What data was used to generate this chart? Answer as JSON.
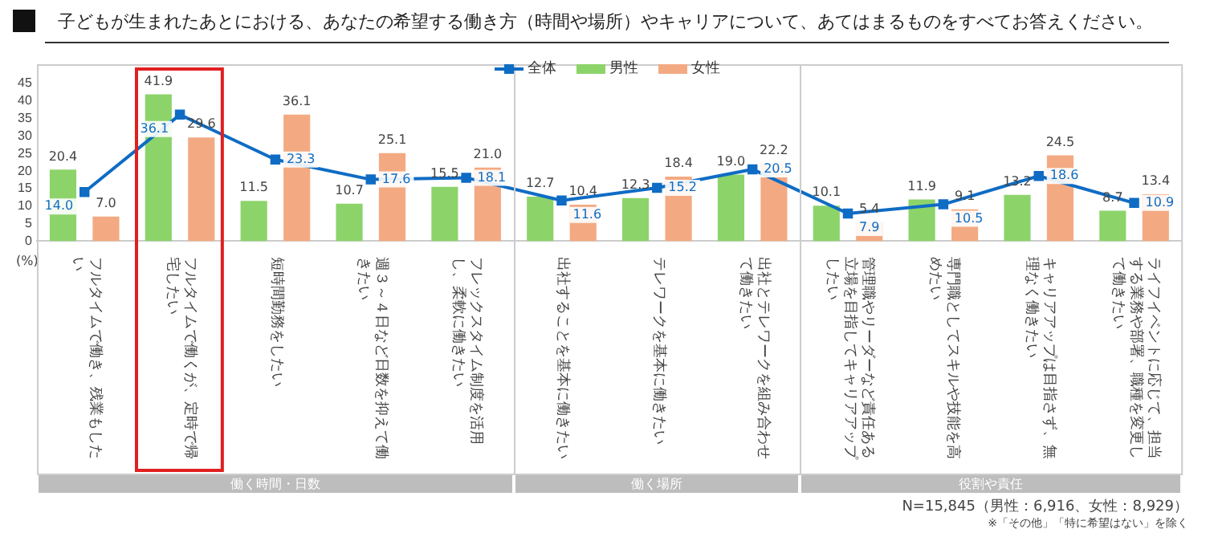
{
  "chart_data": {
    "type": "bar",
    "title": "子どもが生まれたあとにおける、あなたの希望する働き方（時間や場所）やキャリアについて、あてはまるものをすべてお答えください。",
    "ylabel": "(%)",
    "categories": [
      "フルタイムで働き、残業もしたい",
      "フルタイムで働くが、定時で帰宅したい",
      "短時間勤務をしたい",
      "週３～４日など日数を抑えて働きたい",
      "フレックスタイム制度を活用し、柔軟に働きたい",
      "出社することを基本に働きたい",
      "テレワークを基本に働きたい",
      "出社とテレワークを組み合わせて働きたい",
      "管理職やリーダーなど責任ある立場を目指してキャリアアップしたい",
      "専門職としてスキルや技能を高めたい",
      "キャリアアップは目指さず、無理なく働きたい",
      "ライフイベントに応じて、担当する業務や部署、職種を変更して働きたい"
    ],
    "series": [
      {
        "name": "全体",
        "type": "line",
        "color": "#0f6cc4",
        "values": [
          14.0,
          36.1,
          23.3,
          17.6,
          18.1,
          11.6,
          15.2,
          20.5,
          7.9,
          10.5,
          18.6,
          10.9
        ],
        "value_labels": [
          "14.0",
          "36.1",
          "23.3",
          "17.6",
          "18.1",
          "11.6",
          "15.2",
          "20.5",
          "7.9",
          "10.5",
          "18.6",
          "10.9"
        ]
      },
      {
        "name": "男性",
        "color": "#8cd46a",
        "values": [
          20.4,
          41.9,
          11.5,
          10.7,
          15.5,
          12.7,
          12.3,
          19.0,
          10.1,
          11.9,
          13.2,
          8.7
        ],
        "value_labels": [
          "20.4",
          "41.9",
          "11.5",
          "10.7",
          "15.5",
          "12.7",
          "12.3",
          "19.0",
          "10.1",
          "11.9",
          "13.2",
          "8.7"
        ]
      },
      {
        "name": "女性",
        "color": "#f3aa82",
        "values": [
          7.0,
          29.6,
          36.1,
          25.1,
          21.0,
          10.4,
          18.4,
          22.2,
          5.4,
          9.1,
          24.5,
          13.4
        ],
        "value_labels": [
          "7.0",
          "29.6",
          "36.1",
          "25.1",
          "21.0",
          "10.4",
          "18.4",
          "22.2",
          "5.4",
          "9.1",
          "24.5",
          "13.4"
        ]
      }
    ],
    "ylim": [
      0,
      45
    ],
    "yticks": [
      0,
      5,
      10,
      15,
      20,
      25,
      30,
      35,
      40,
      45
    ],
    "grid": false,
    "legend": "top",
    "marker": "square",
    "annotations": [
      "働く時間・日数",
      "働く場所",
      "役割や責任",
      "N=15,845（男性：6,916、女性：8,929）",
      "※「その他」「特に希望はない」を除く"
    ]
  }
}
